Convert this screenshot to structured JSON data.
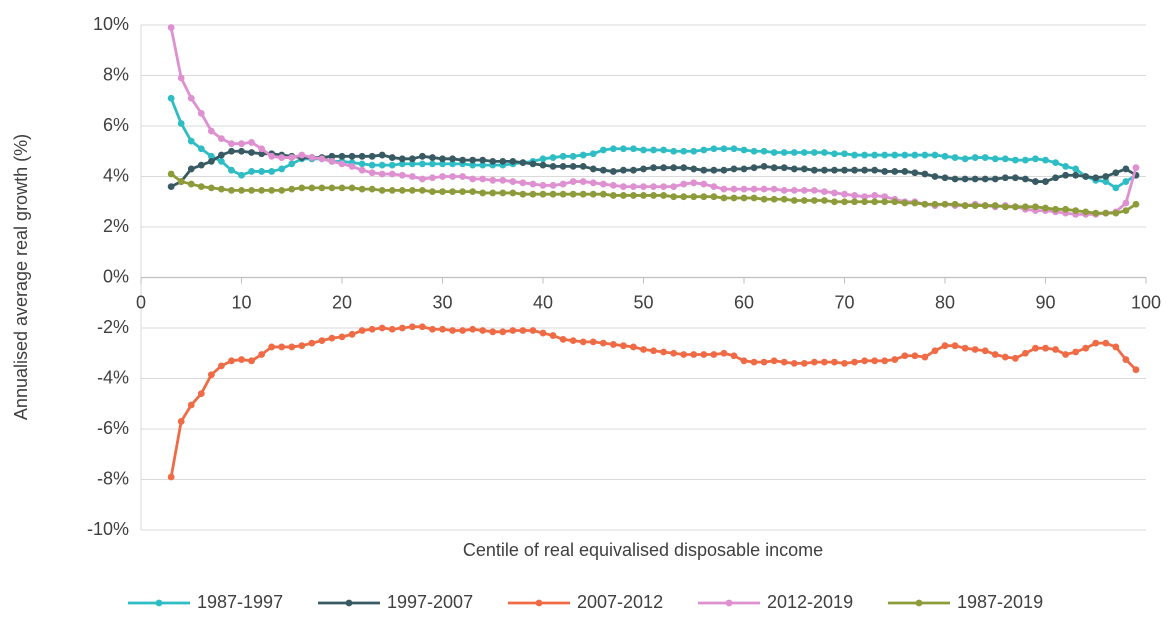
{
  "chart_data": {
    "type": "line",
    "y_label": "Annualised average real growth (%)",
    "x_label": "Centile of real equivalised disposable income",
    "xlim": [
      0,
      100
    ],
    "xticks": [
      0,
      10,
      20,
      30,
      40,
      50,
      60,
      70,
      80,
      90,
      100
    ],
    "ylim": [
      -10,
      10
    ],
    "yticks": [
      {
        "value": -10,
        "label": "-10%"
      },
      {
        "value": -8,
        "label": "-8%"
      },
      {
        "value": -6,
        "label": "-6%"
      },
      {
        "value": -4,
        "label": "-4%"
      },
      {
        "value": -2,
        "label": "-2%"
      },
      {
        "value": 0,
        "label": "0%"
      },
      {
        "value": 2,
        "label": "2%"
      },
      {
        "value": 4,
        "label": "4%"
      },
      {
        "value": 6,
        "label": "6%"
      },
      {
        "value": 8,
        "label": "8%"
      },
      {
        "value": 10,
        "label": "10%"
      }
    ],
    "grid": true,
    "legend": "bottom",
    "x": [
      3,
      4,
      5,
      6,
      7,
      8,
      9,
      10,
      11,
      12,
      13,
      14,
      15,
      16,
      17,
      18,
      19,
      20,
      21,
      22,
      23,
      24,
      25,
      26,
      27,
      28,
      29,
      30,
      31,
      32,
      33,
      34,
      35,
      36,
      37,
      38,
      39,
      40,
      41,
      42,
      43,
      44,
      45,
      46,
      47,
      48,
      49,
      50,
      51,
      52,
      53,
      54,
      55,
      56,
      57,
      58,
      59,
      60,
      61,
      62,
      63,
      64,
      65,
      66,
      67,
      68,
      69,
      70,
      71,
      72,
      73,
      74,
      75,
      76,
      77,
      78,
      79,
      80,
      81,
      82,
      83,
      84,
      85,
      86,
      87,
      88,
      89,
      90,
      91,
      92,
      93,
      94,
      95,
      96,
      97,
      98,
      99
    ],
    "series": [
      {
        "name": "1987-1997",
        "color": "#2ebdc5",
        "values": [
          7.1,
          6.1,
          5.4,
          5.1,
          4.8,
          4.6,
          4.25,
          4.05,
          4.2,
          4.2,
          4.2,
          4.3,
          4.5,
          4.7,
          4.7,
          4.7,
          4.6,
          4.6,
          4.55,
          4.5,
          4.45,
          4.45,
          4.45,
          4.5,
          4.5,
          4.5,
          4.5,
          4.5,
          4.5,
          4.5,
          4.45,
          4.45,
          4.45,
          4.45,
          4.5,
          4.55,
          4.6,
          4.7,
          4.75,
          4.8,
          4.8,
          4.85,
          4.9,
          5.05,
          5.1,
          5.1,
          5.1,
          5.05,
          5.05,
          5.05,
          5.0,
          5.0,
          5.0,
          5.05,
          5.1,
          5.1,
          5.1,
          5.05,
          5.0,
          5.0,
          4.95,
          4.95,
          4.95,
          4.95,
          4.95,
          4.95,
          4.9,
          4.9,
          4.85,
          4.85,
          4.85,
          4.85,
          4.85,
          4.85,
          4.85,
          4.85,
          4.85,
          4.8,
          4.75,
          4.7,
          4.75,
          4.75,
          4.7,
          4.7,
          4.65,
          4.65,
          4.7,
          4.65,
          4.55,
          4.4,
          4.3,
          4.0,
          3.85,
          3.8,
          3.55,
          3.8,
          4.05
        ]
      },
      {
        "name": "1997-2007",
        "color": "#385a63",
        "values": [
          3.6,
          3.8,
          4.3,
          4.45,
          4.6,
          4.85,
          5.0,
          5.0,
          4.95,
          4.9,
          4.9,
          4.85,
          4.8,
          4.75,
          4.75,
          4.75,
          4.8,
          4.8,
          4.8,
          4.8,
          4.8,
          4.85,
          4.75,
          4.7,
          4.7,
          4.8,
          4.75,
          4.7,
          4.7,
          4.65,
          4.65,
          4.65,
          4.6,
          4.6,
          4.6,
          4.55,
          4.5,
          4.45,
          4.4,
          4.4,
          4.4,
          4.4,
          4.3,
          4.25,
          4.2,
          4.25,
          4.25,
          4.3,
          4.35,
          4.35,
          4.35,
          4.35,
          4.3,
          4.25,
          4.25,
          4.25,
          4.3,
          4.3,
          4.35,
          4.4,
          4.35,
          4.35,
          4.3,
          4.3,
          4.25,
          4.25,
          4.25,
          4.25,
          4.25,
          4.25,
          4.25,
          4.2,
          4.2,
          4.2,
          4.15,
          4.1,
          4.0,
          3.95,
          3.9,
          3.9,
          3.9,
          3.9,
          3.9,
          3.95,
          3.95,
          3.9,
          3.8,
          3.8,
          3.95,
          4.05,
          4.05,
          4.0,
          3.95,
          4.0,
          4.15,
          4.3,
          4.05
        ]
      },
      {
        "name": "2007-2012",
        "color": "#ef6b45",
        "values": [
          -7.9,
          -5.7,
          -5.05,
          -4.6,
          -3.85,
          -3.5,
          -3.3,
          -3.25,
          -3.3,
          -3.05,
          -2.75,
          -2.75,
          -2.75,
          -2.7,
          -2.6,
          -2.5,
          -2.4,
          -2.35,
          -2.25,
          -2.1,
          -2.05,
          -2.0,
          -2.05,
          -2.0,
          -1.95,
          -1.95,
          -2.05,
          -2.05,
          -2.1,
          -2.1,
          -2.05,
          -2.1,
          -2.15,
          -2.15,
          -2.1,
          -2.1,
          -2.1,
          -2.2,
          -2.3,
          -2.45,
          -2.5,
          -2.55,
          -2.55,
          -2.6,
          -2.65,
          -2.7,
          -2.75,
          -2.85,
          -2.9,
          -2.95,
          -3.0,
          -3.05,
          -3.05,
          -3.05,
          -3.05,
          -3.0,
          -3.1,
          -3.3,
          -3.35,
          -3.35,
          -3.3,
          -3.35,
          -3.4,
          -3.4,
          -3.35,
          -3.35,
          -3.35,
          -3.4,
          -3.35,
          -3.3,
          -3.3,
          -3.3,
          -3.25,
          -3.1,
          -3.1,
          -3.15,
          -2.9,
          -2.7,
          -2.7,
          -2.8,
          -2.85,
          -2.9,
          -3.05,
          -3.15,
          -3.2,
          -3.0,
          -2.8,
          -2.8,
          -2.85,
          -3.05,
          -2.95,
          -2.8,
          -2.6,
          -2.6,
          -2.75,
          -3.25,
          -3.65
        ]
      },
      {
        "name": "2012-2019",
        "color": "#de90d0",
        "values": [
          9.9,
          7.9,
          7.1,
          6.5,
          5.8,
          5.5,
          5.3,
          5.3,
          5.35,
          5.1,
          4.8,
          4.75,
          4.75,
          4.85,
          4.75,
          4.7,
          4.6,
          4.5,
          4.4,
          4.25,
          4.15,
          4.1,
          4.1,
          4.05,
          4.0,
          3.9,
          3.95,
          4.0,
          4.0,
          4.0,
          3.9,
          3.9,
          3.85,
          3.85,
          3.8,
          3.75,
          3.7,
          3.65,
          3.65,
          3.7,
          3.8,
          3.8,
          3.75,
          3.7,
          3.65,
          3.6,
          3.6,
          3.6,
          3.6,
          3.6,
          3.6,
          3.7,
          3.75,
          3.7,
          3.6,
          3.5,
          3.5,
          3.5,
          3.5,
          3.5,
          3.5,
          3.45,
          3.45,
          3.45,
          3.45,
          3.4,
          3.35,
          3.3,
          3.25,
          3.2,
          3.25,
          3.2,
          3.1,
          3.0,
          3.0,
          2.9,
          2.85,
          2.9,
          2.85,
          2.85,
          2.9,
          2.85,
          2.8,
          2.85,
          2.8,
          2.7,
          2.65,
          2.65,
          2.6,
          2.55,
          2.5,
          2.5,
          2.5,
          2.55,
          2.6,
          2.95,
          4.35
        ]
      },
      {
        "name": "1987-2019",
        "color": "#8d9b3a",
        "values": [
          4.1,
          3.8,
          3.7,
          3.6,
          3.55,
          3.5,
          3.45,
          3.45,
          3.45,
          3.45,
          3.45,
          3.45,
          3.5,
          3.55,
          3.55,
          3.55,
          3.55,
          3.55,
          3.55,
          3.5,
          3.5,
          3.45,
          3.45,
          3.45,
          3.45,
          3.45,
          3.4,
          3.4,
          3.4,
          3.4,
          3.4,
          3.35,
          3.35,
          3.35,
          3.35,
          3.3,
          3.3,
          3.3,
          3.3,
          3.3,
          3.3,
          3.3,
          3.3,
          3.3,
          3.25,
          3.25,
          3.25,
          3.25,
          3.25,
          3.25,
          3.2,
          3.2,
          3.2,
          3.2,
          3.2,
          3.15,
          3.15,
          3.15,
          3.15,
          3.1,
          3.1,
          3.1,
          3.05,
          3.05,
          3.05,
          3.05,
          3.0,
          3.0,
          3.0,
          3.0,
          3.0,
          3.0,
          3.0,
          2.95,
          2.95,
          2.9,
          2.9,
          2.9,
          2.9,
          2.85,
          2.85,
          2.85,
          2.85,
          2.8,
          2.8,
          2.8,
          2.8,
          2.75,
          2.7,
          2.7,
          2.65,
          2.6,
          2.55,
          2.55,
          2.55,
          2.65,
          2.9
        ]
      }
    ]
  }
}
